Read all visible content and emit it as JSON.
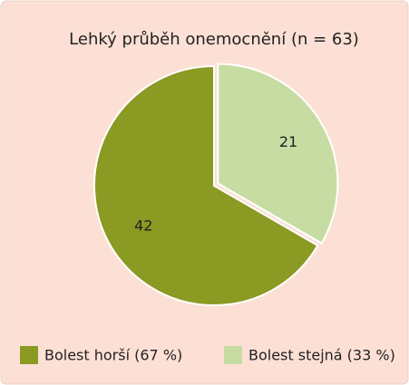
{
  "chart_data": {
    "type": "pie",
    "title": "Lehký průběh onemocnění (n = 63)",
    "categories": [
      "Bolest horší (67 %)",
      "Bolest stejná (33 %)"
    ],
    "values": [
      42,
      21
    ],
    "colors": [
      "#8a9a22",
      "#c6dca2"
    ],
    "legend": "bottom"
  }
}
